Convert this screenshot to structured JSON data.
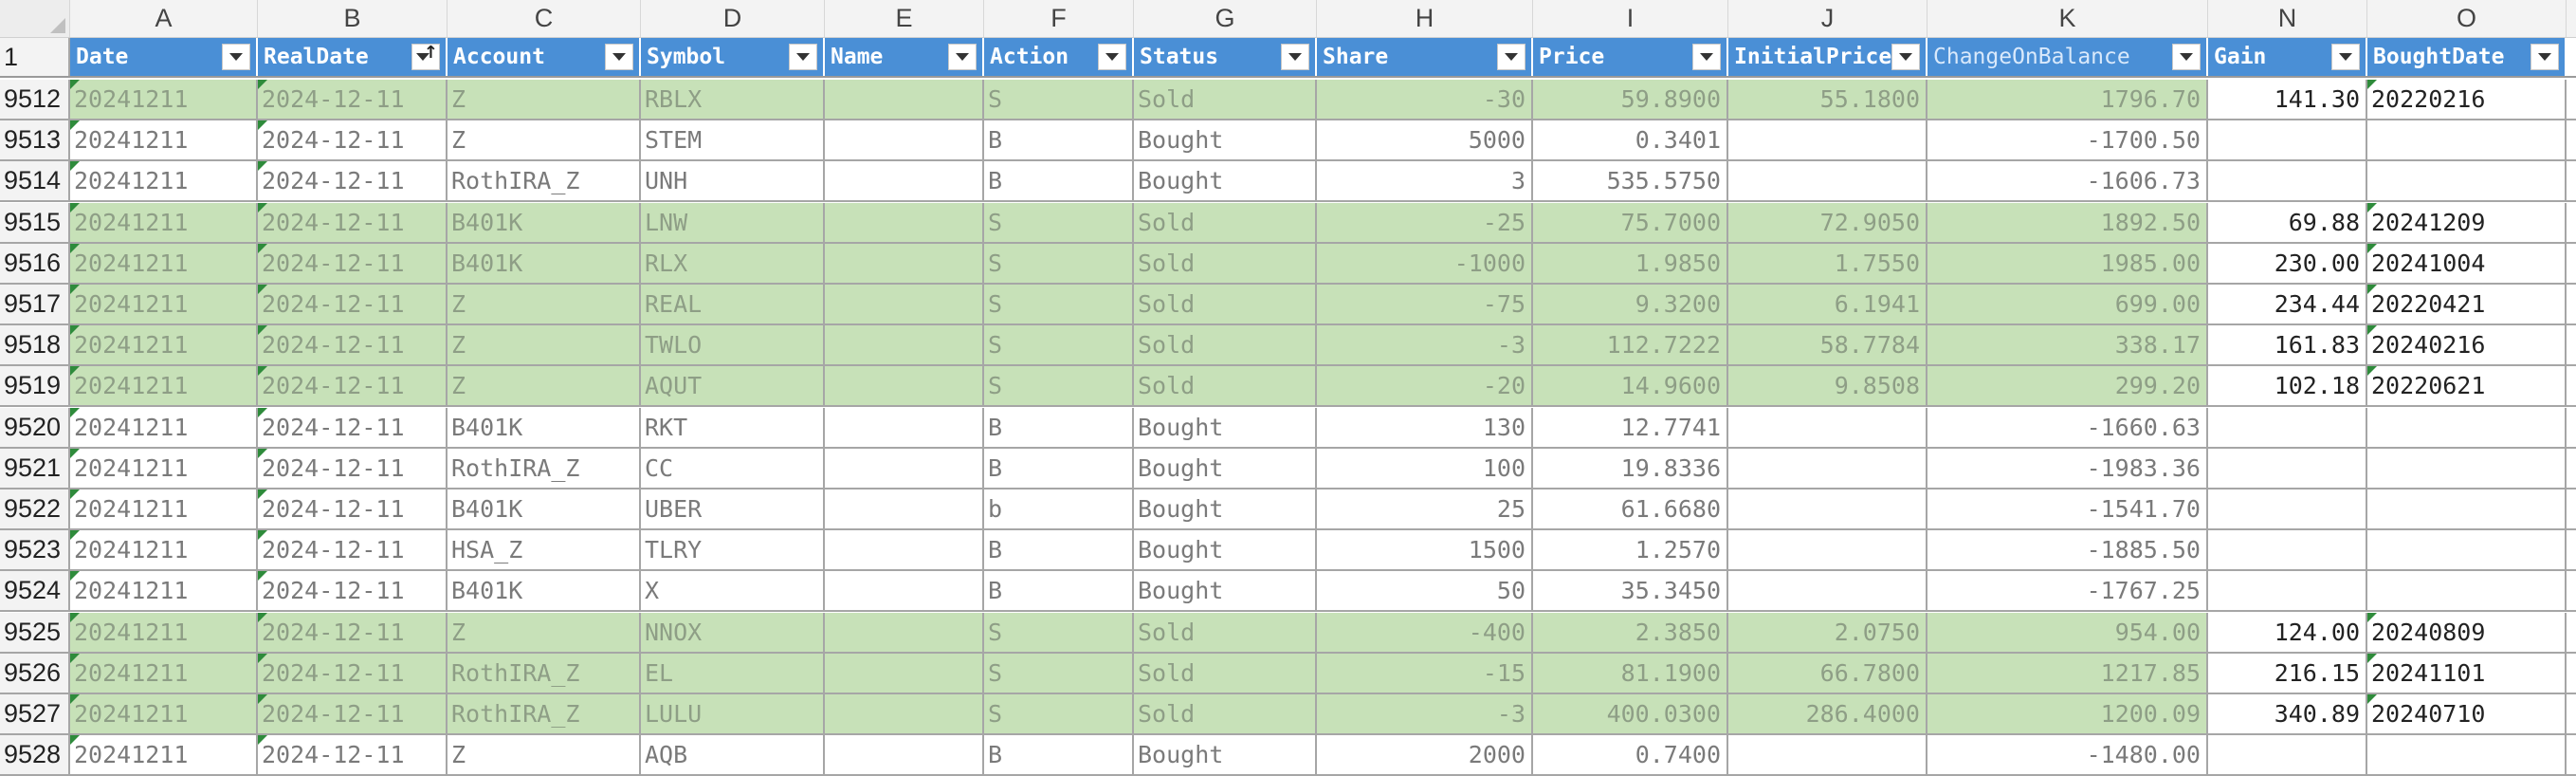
{
  "columns": [
    {
      "letter": "A",
      "field": "Date"
    },
    {
      "letter": "B",
      "field": "RealDate"
    },
    {
      "letter": "C",
      "field": "Account"
    },
    {
      "letter": "D",
      "field": "Symbol"
    },
    {
      "letter": "E",
      "field": "Name"
    },
    {
      "letter": "F",
      "field": "Action"
    },
    {
      "letter": "G",
      "field": "Status"
    },
    {
      "letter": "H",
      "field": "Share"
    },
    {
      "letter": "I",
      "field": "Price"
    },
    {
      "letter": "J",
      "field": "InitialPrice"
    },
    {
      "letter": "K",
      "field": "ChangeOnBalance"
    },
    {
      "letter": "N",
      "field": "Gain"
    },
    {
      "letter": "O",
      "field": "BoughtDate"
    }
  ],
  "header_row_number": "1",
  "sorted_column": "RealDate",
  "colors": {
    "header_blue": "#4a8fd6",
    "sold_row_green": "#c7e1b8",
    "grid_line": "#a6a6a6",
    "error_flag": "#2e8b3b"
  },
  "rows": [
    {
      "n": "9512",
      "sold": true,
      "cells": [
        "20241211",
        "2024-12-11",
        "Z",
        "RBLX",
        "",
        "S",
        "Sold",
        "-30",
        "59.8900",
        "55.1800",
        "1796.70",
        "141.30",
        "20220216"
      ]
    },
    {
      "n": "9513",
      "sold": false,
      "cells": [
        "20241211",
        "2024-12-11",
        "Z",
        "STEM",
        "",
        "B",
        "Bought",
        "5000",
        "0.3401",
        "",
        "-1700.50",
        "",
        ""
      ]
    },
    {
      "n": "9514",
      "sold": false,
      "cells": [
        "20241211",
        "2024-12-11",
        "RothIRA_Z",
        "UNH",
        "",
        "B",
        "Bought",
        "3",
        "535.5750",
        "",
        "-1606.73",
        "",
        ""
      ]
    },
    {
      "n": "9515",
      "sold": true,
      "cells": [
        "20241211",
        "2024-12-11",
        "B401K",
        "LNW",
        "",
        "S",
        "Sold",
        "-25",
        "75.7000",
        "72.9050",
        "1892.50",
        "69.88",
        "20241209"
      ]
    },
    {
      "n": "9516",
      "sold": true,
      "cells": [
        "20241211",
        "2024-12-11",
        "B401K",
        "RLX",
        "",
        "S",
        "Sold",
        "-1000",
        "1.9850",
        "1.7550",
        "1985.00",
        "230.00",
        "20241004"
      ]
    },
    {
      "n": "9517",
      "sold": true,
      "cells": [
        "20241211",
        "2024-12-11",
        "Z",
        "REAL",
        "",
        "S",
        "Sold",
        "-75",
        "9.3200",
        "6.1941",
        "699.00",
        "234.44",
        "20220421"
      ]
    },
    {
      "n": "9518",
      "sold": true,
      "cells": [
        "20241211",
        "2024-12-11",
        "Z",
        "TWLO",
        "",
        "S",
        "Sold",
        "-3",
        "112.7222",
        "58.7784",
        "338.17",
        "161.83",
        "20240216"
      ]
    },
    {
      "n": "9519",
      "sold": true,
      "cells": [
        "20241211",
        "2024-12-11",
        "Z",
        "AQUT",
        "",
        "S",
        "Sold",
        "-20",
        "14.9600",
        "9.8508",
        "299.20",
        "102.18",
        "20220621"
      ]
    },
    {
      "n": "9520",
      "sold": false,
      "cells": [
        "20241211",
        "2024-12-11",
        "B401K",
        "RKT",
        "",
        "B",
        "Bought",
        "130",
        "12.7741",
        "",
        "-1660.63",
        "",
        ""
      ]
    },
    {
      "n": "9521",
      "sold": false,
      "cells": [
        "20241211",
        "2024-12-11",
        "RothIRA_Z",
        "CC",
        "",
        "B",
        "Bought",
        "100",
        "19.8336",
        "",
        "-1983.36",
        "",
        ""
      ]
    },
    {
      "n": "9522",
      "sold": false,
      "cells": [
        "20241211",
        "2024-12-11",
        "B401K",
        "UBER",
        "",
        "b",
        "Bought",
        "25",
        "61.6680",
        "",
        "-1541.70",
        "",
        ""
      ]
    },
    {
      "n": "9523",
      "sold": false,
      "cells": [
        "20241211",
        "2024-12-11",
        "HSA_Z",
        "TLRY",
        "",
        "B",
        "Bought",
        "1500",
        "1.2570",
        "",
        "-1885.50",
        "",
        ""
      ]
    },
    {
      "n": "9524",
      "sold": false,
      "cells": [
        "20241211",
        "2024-12-11",
        "B401K",
        "X",
        "",
        "B",
        "Bought",
        "50",
        "35.3450",
        "",
        "-1767.25",
        "",
        ""
      ]
    },
    {
      "n": "9525",
      "sold": true,
      "cells": [
        "20241211",
        "2024-12-11",
        "Z",
        "NNOX",
        "",
        "S",
        "Sold",
        "-400",
        "2.3850",
        "2.0750",
        "954.00",
        "124.00",
        "20240809"
      ]
    },
    {
      "n": "9526",
      "sold": true,
      "cells": [
        "20241211",
        "2024-12-11",
        "RothIRA_Z",
        "EL",
        "",
        "S",
        "Sold",
        "-15",
        "81.1900",
        "66.7800",
        "1217.85",
        "216.15",
        "20241101"
      ]
    },
    {
      "n": "9527",
      "sold": true,
      "cells": [
        "20241211",
        "2024-12-11",
        "RothIRA_Z",
        "LULU",
        "",
        "S",
        "Sold",
        "-3",
        "400.0300",
        "286.4000",
        "1200.09",
        "340.89",
        "20240710"
      ]
    },
    {
      "n": "9528",
      "sold": false,
      "cells": [
        "20241211",
        "2024-12-11",
        "Z",
        "AQB",
        "",
        "B",
        "Bought",
        "2000",
        "0.7400",
        "",
        "-1480.00",
        "",
        ""
      ]
    }
  ]
}
